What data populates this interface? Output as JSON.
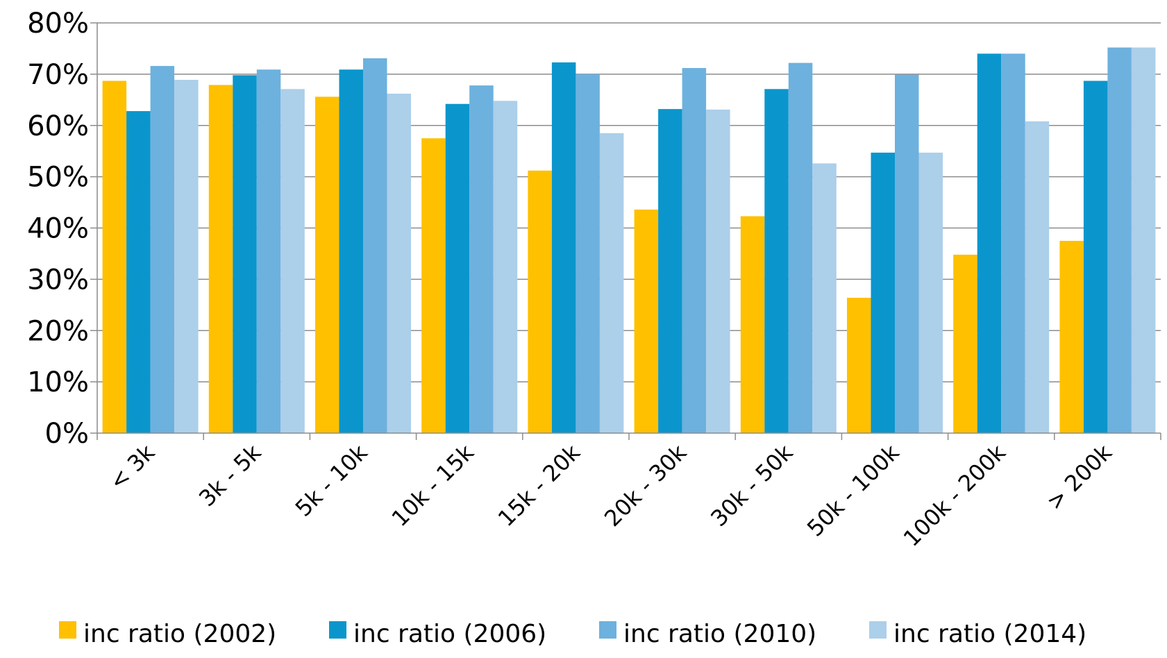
{
  "chart_data": {
    "type": "bar",
    "title": "",
    "xlabel": "",
    "ylabel": "",
    "ylim": [
      0,
      80
    ],
    "y_ticks": [
      "0%",
      "10%",
      "20%",
      "30%",
      "40%",
      "50%",
      "60%",
      "70%",
      "80%"
    ],
    "grid": true,
    "legend_position": "bottom",
    "categories": [
      "< 3k",
      "3k - 5k",
      "5k - 10k",
      "10k - 15k",
      "15k - 20k",
      "20k - 30k",
      "30k - 50k",
      "50k - 100k",
      "100k - 200k",
      "> 200k"
    ],
    "series": [
      {
        "name": "inc ratio (2002)",
        "color": "#FFC000",
        "values": [
          68.7,
          67.9,
          65.6,
          57.5,
          51.2,
          43.6,
          42.3,
          26.4,
          34.8,
          37.5
        ]
      },
      {
        "name": "inc ratio (2006)",
        "color": "#0A96CC",
        "values": [
          62.8,
          69.8,
          70.9,
          64.2,
          72.3,
          63.2,
          67.1,
          54.7,
          74.0,
          68.7
        ]
      },
      {
        "name": "inc ratio (2010)",
        "color": "#6DB1DE",
        "values": [
          71.6,
          70.9,
          73.1,
          67.8,
          70.0,
          71.2,
          72.2,
          69.9,
          74.0,
          75.2
        ]
      },
      {
        "name": "inc ratio (2014)",
        "color": "#ACCFEA",
        "values": [
          68.9,
          67.1,
          66.2,
          64.8,
          58.5,
          63.1,
          52.6,
          54.7,
          60.8,
          75.2
        ]
      }
    ]
  }
}
